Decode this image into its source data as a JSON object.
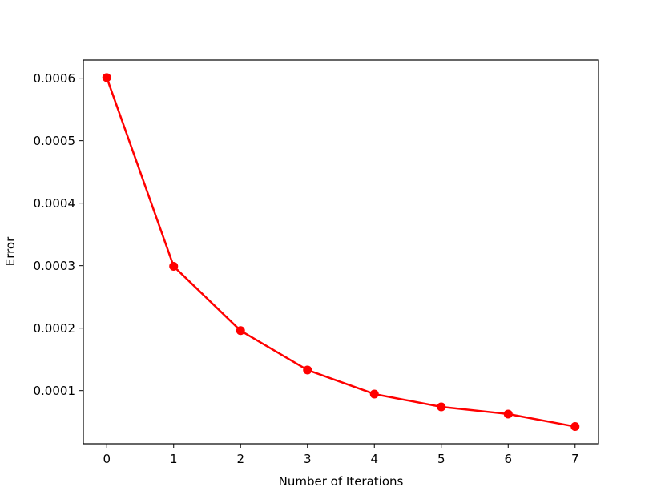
{
  "chart_data": {
    "type": "line",
    "title": "",
    "xlabel": "Number of Iterations",
    "ylabel": "Error",
    "x": [
      0,
      1,
      2,
      3,
      4,
      5,
      6,
      7
    ],
    "series": [
      {
        "values": [
          0.000601,
          0.000299,
          0.000196,
          0.000133,
          9.45e-05,
          7.4e-05,
          6.25e-05,
          4.25e-05
        ],
        "color": "#ff0000",
        "marker": "circle"
      }
    ],
    "xlim": [
      -0.35,
      7.35
    ],
    "ylim": [
      1.5e-05,
      0.000629
    ],
    "xticks": [
      0,
      1,
      2,
      3,
      4,
      5,
      6,
      7
    ],
    "xtick_labels": [
      "0",
      "1",
      "2",
      "3",
      "4",
      "5",
      "6",
      "7"
    ],
    "yticks": [
      0.0001,
      0.0002,
      0.0003,
      0.0004,
      0.0005,
      0.0006
    ],
    "ytick_labels": [
      "0.0001",
      "0.0002",
      "0.0003",
      "0.0004",
      "0.0005",
      "0.0006"
    ],
    "grid": false,
    "legend": "none"
  }
}
